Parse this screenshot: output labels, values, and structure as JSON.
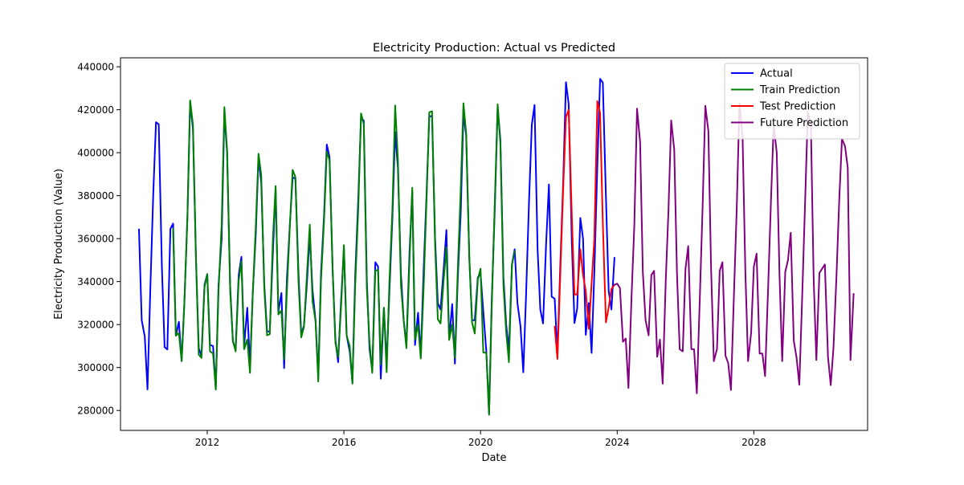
{
  "chart_data": {
    "type": "line",
    "title": "Electricity Production: Actual vs Predicted",
    "xlabel": "Date",
    "ylabel": "Electricity Production (Value)",
    "xlim": [
      2009.46,
      2031.33
    ],
    "ylim": [
      270730,
      444160
    ],
    "x_ticks": [
      2012,
      2016,
      2020,
      2024,
      2028
    ],
    "x_tick_labels": [
      "2012",
      "2016",
      "2020",
      "2024",
      "2028"
    ],
    "y_ticks": [
      280000,
      300000,
      320000,
      340000,
      360000,
      380000,
      400000,
      420000,
      440000
    ],
    "y_tick_labels": [
      "280000",
      "300000",
      "320000",
      "340000",
      "360000",
      "380000",
      "400000",
      "420000",
      "440000"
    ],
    "legend_position": "top-right",
    "grid": false,
    "series": [
      {
        "name": "Actual",
        "color": "#0000ff",
        "x": [
          2010.0,
          2010.08,
          2010.17,
          2010.25,
          2010.33,
          2010.42,
          2010.5,
          2010.58,
          2010.67,
          2010.75,
          2010.83,
          2010.92,
          2011.0,
          2011.08,
          2011.17,
          2011.25,
          2011.33,
          2011.42,
          2011.5,
          2011.58,
          2011.67,
          2011.75,
          2011.83,
          2011.92,
          2012.0,
          2012.08,
          2012.17,
          2012.25,
          2012.33,
          2012.42,
          2012.5,
          2012.58,
          2012.67,
          2012.75,
          2012.83,
          2012.92,
          2013.0,
          2013.08,
          2013.17,
          2013.25,
          2013.33,
          2013.42,
          2013.5,
          2013.58,
          2013.67,
          2013.75,
          2013.83,
          2013.92,
          2014.0,
          2014.08,
          2014.17,
          2014.25,
          2014.33,
          2014.42,
          2014.5,
          2014.58,
          2014.67,
          2014.75,
          2014.83,
          2014.92,
          2015.0,
          2015.08,
          2015.17,
          2015.25,
          2015.33,
          2015.42,
          2015.5,
          2015.58,
          2015.67,
          2015.75,
          2015.83,
          2015.92,
          2016.0,
          2016.08,
          2016.17,
          2016.25,
          2016.33,
          2016.42,
          2016.5,
          2016.58,
          2016.67,
          2016.75,
          2016.83,
          2016.92,
          2017.0,
          2017.08,
          2017.17,
          2017.25,
          2017.33,
          2017.42,
          2017.5,
          2017.58,
          2017.67,
          2017.75,
          2017.83,
          2017.92,
          2018.0,
          2018.08,
          2018.17,
          2018.25,
          2018.33,
          2018.42,
          2018.5,
          2018.58,
          2018.67,
          2018.75,
          2018.83,
          2018.92,
          2019.0,
          2019.08,
          2019.17,
          2019.25,
          2019.33,
          2019.42,
          2019.5,
          2019.58,
          2019.67,
          2019.75,
          2019.83,
          2019.92,
          2020.0,
          2020.08,
          2020.17,
          2020.25,
          2020.33,
          2020.42,
          2020.5,
          2020.58,
          2020.67,
          2020.75,
          2020.83,
          2020.92,
          2021.0,
          2021.08,
          2021.17,
          2021.25,
          2021.33,
          2021.42,
          2021.5,
          2021.58,
          2021.67,
          2021.75,
          2021.83,
          2021.92,
          2022.0,
          2022.08,
          2022.17,
          2022.25,
          2022.33,
          2022.42,
          2022.5,
          2022.58,
          2022.67,
          2022.75,
          2022.83,
          2022.92,
          2023.0,
          2023.08,
          2023.17,
          2023.25,
          2023.33,
          2023.42,
          2023.5,
          2023.58,
          2023.67,
          2023.75,
          2023.83,
          2023.92
        ],
        "y": [
          364200,
          322000,
          314500,
          289800,
          335000,
          381000,
          414200,
          413200,
          347000,
          309500,
          308400,
          364500,
          367000,
          314800,
          321300,
          303000,
          330000,
          370000,
          423500,
          411000,
          350000,
          309000,
          305500,
          338500,
          343500,
          310500,
          310000,
          290300,
          338000,
          360000,
          418000,
          400000,
          338000,
          312000,
          308500,
          343000,
          351500,
          310200,
          327800,
          300200,
          334200,
          362000,
          398000,
          386000,
          338500,
          317000,
          316500,
          353500,
          383200,
          325800,
          334700,
          299700,
          341000,
          367000,
          388500,
          388000,
          343500,
          315500,
          319500,
          340000,
          362000,
          336000,
          322000,
          296000,
          344000,
          371000,
          403800,
          398000,
          345000,
          313000,
          302500,
          332000,
          355500,
          315000,
          307500,
          293000,
          342000,
          379000,
          416000,
          415000,
          341000,
          308500,
          298500,
          349000,
          347000,
          294800,
          327800,
          301800,
          335000,
          370000,
          409500,
          393000,
          343500,
          322000,
          310500,
          354000,
          381800,
          310500,
          325500,
          305500,
          344000,
          381000,
          417000,
          417000,
          360000,
          330000,
          327000,
          346000,
          364000,
          313000,
          329500,
          301800,
          340000,
          372000,
          418000,
          408000,
          351000,
          322000,
          322000,
          342000,
          343500,
          326200,
          307400,
          278500,
          332000,
          376000,
          421000,
          406000,
          342000,
          320000,
          308000,
          348000,
          355000,
          330000,
          319000,
          297800,
          333000,
          378000,
          413000,
          422200,
          355000,
          327000,
          320500,
          357500,
          385200,
          333000,
          332000,
          306000,
          346000,
          387000,
          432800,
          422600,
          360000,
          320700,
          327500,
          369600,
          360000,
          315200,
          330000,
          306800,
          343800,
          394000,
          434400,
          432600,
          379000,
          335600,
          327000,
          351000
        ]
      },
      {
        "name": "Train Prediction",
        "color": "#008000",
        "x": [
          2011.0,
          2011.08,
          2011.17,
          2011.25,
          2011.33,
          2011.42,
          2011.5,
          2011.58,
          2011.67,
          2011.75,
          2011.83,
          2011.92,
          2012.0,
          2012.08,
          2012.17,
          2012.25,
          2012.33,
          2012.42,
          2012.5,
          2012.58,
          2012.67,
          2012.75,
          2012.83,
          2012.92,
          2013.0,
          2013.08,
          2013.17,
          2013.25,
          2013.33,
          2013.42,
          2013.5,
          2013.58,
          2013.67,
          2013.75,
          2013.83,
          2013.92,
          2014.0,
          2014.08,
          2014.17,
          2014.25,
          2014.33,
          2014.42,
          2014.5,
          2014.58,
          2014.67,
          2014.75,
          2014.83,
          2014.92,
          2015.0,
          2015.08,
          2015.17,
          2015.25,
          2015.33,
          2015.42,
          2015.5,
          2015.58,
          2015.67,
          2015.75,
          2015.83,
          2015.92,
          2016.0,
          2016.08,
          2016.17,
          2016.25,
          2016.33,
          2016.42,
          2016.5,
          2016.58,
          2016.67,
          2016.75,
          2016.83,
          2016.92,
          2017.0,
          2017.08,
          2017.17,
          2017.25,
          2017.33,
          2017.42,
          2017.5,
          2017.58,
          2017.67,
          2017.75,
          2017.83,
          2017.92,
          2018.0,
          2018.08,
          2018.17,
          2018.25,
          2018.33,
          2018.42,
          2018.5,
          2018.58,
          2018.67,
          2018.75,
          2018.83,
          2018.92,
          2019.0,
          2019.08,
          2019.17,
          2019.25,
          2019.33,
          2019.42,
          2019.5,
          2019.58,
          2019.67,
          2019.75,
          2019.83,
          2019.92,
          2020.0,
          2020.08,
          2020.17,
          2020.25,
          2020.33,
          2020.42,
          2020.5,
          2020.58,
          2020.67,
          2020.75,
          2020.83,
          2020.92,
          2021.0
        ],
        "y": [
          364500,
          314800,
          316000,
          303000,
          330000,
          370000,
          424300,
          413000,
          350000,
          306000,
          304500,
          337500,
          343500,
          307500,
          306500,
          289700,
          335500,
          366500,
          421200,
          401000,
          336000,
          312500,
          307500,
          340500,
          349500,
          308500,
          313000,
          297500,
          334000,
          366000,
          399500,
          389500,
          336500,
          315000,
          315500,
          360000,
          384500,
          324700,
          326500,
          303700,
          335500,
          366500,
          392000,
          388700,
          339500,
          314000,
          319000,
          344000,
          366500,
          331000,
          321500,
          293500,
          340500,
          368500,
          400500,
          396500,
          345500,
          311500,
          305000,
          329000,
          357000,
          315000,
          310000,
          292500,
          337500,
          374000,
          418300,
          413500,
          337000,
          311500,
          297500,
          345000,
          345500,
          301500,
          327800,
          297800,
          339500,
          374000,
          422000,
          397000,
          338500,
          322000,
          309000,
          350000,
          383700,
          313000,
          320000,
          304200,
          335500,
          378500,
          418800,
          419300,
          357000,
          322500,
          320500,
          341000,
          356000,
          312800,
          320000,
          304500,
          344000,
          383000,
          423000,
          409000,
          351000,
          321000,
          315800,
          341000,
          346000,
          307000,
          306800,
          278000,
          329500,
          379000,
          422500,
          404000,
          338000,
          316500,
          302500,
          348000,
          354000
        ]
      },
      {
        "name": "Test Prediction",
        "color": "#ff0000",
        "x": [
          2022.17,
          2022.25,
          2022.33,
          2022.42,
          2022.5,
          2022.58,
          2022.67,
          2022.75,
          2022.83,
          2022.92,
          2023.0,
          2023.08,
          2023.17,
          2023.25,
          2023.33,
          2023.42,
          2023.5,
          2023.58,
          2023.67,
          2023.75,
          2023.83,
          2023.92
        ],
        "y": [
          319000,
          304000,
          341500,
          383500,
          416500,
          420000,
          372000,
          334000,
          334000,
          355000,
          343000,
          335500,
          318000,
          339000,
          359500,
          424000,
          418500,
          367000,
          321000,
          328000,
          336500,
          338500
        ]
      },
      {
        "name": "Future Prediction",
        "color": "#800080",
        "x": [
          2023.92,
          2024.0,
          2024.08,
          2024.17,
          2024.25,
          2024.33,
          2024.42,
          2024.5,
          2024.58,
          2024.67,
          2024.75,
          2024.83,
          2024.92,
          2025.0,
          2025.08,
          2025.17,
          2025.25,
          2025.33,
          2025.42,
          2025.5,
          2025.58,
          2025.67,
          2025.75,
          2025.83,
          2025.92,
          2026.0,
          2026.08,
          2026.17,
          2026.25,
          2026.33,
          2026.42,
          2026.5,
          2026.58,
          2026.67,
          2026.75,
          2026.83,
          2026.92,
          2027.0,
          2027.08,
          2027.17,
          2027.25,
          2027.33,
          2027.42,
          2027.5,
          2027.58,
          2027.67,
          2027.75,
          2027.83,
          2027.92,
          2028.0,
          2028.08,
          2028.17,
          2028.25,
          2028.33,
          2028.42,
          2028.5,
          2028.58,
          2028.67,
          2028.75,
          2028.83,
          2028.92,
          2029.0,
          2029.08,
          2029.17,
          2029.25,
          2029.33,
          2029.42,
          2029.5,
          2029.58,
          2029.67,
          2029.75,
          2029.83,
          2029.92,
          2030.0,
          2030.08,
          2030.17,
          2030.25,
          2030.33,
          2030.42,
          2030.5,
          2030.58,
          2030.67,
          2030.75,
          2030.83,
          2030.92
        ],
        "y": [
          338500,
          339000,
          337000,
          312000,
          313500,
          290500,
          333500,
          366000,
          420500,
          405000,
          344500,
          322000,
          315000,
          343000,
          345000,
          305000,
          313000,
          292500,
          340000,
          373000,
          415000,
          401500,
          344000,
          308500,
          307500,
          346000,
          356500,
          308500,
          308500,
          288000,
          333000,
          374500,
          421800,
          410000,
          345500,
          303000,
          308500,
          345000,
          349000,
          305500,
          302000,
          289500,
          335000,
          374000,
          423000,
          407000,
          345000,
          303000,
          316000,
          347000,
          353000,
          306500,
          306500,
          296000,
          338500,
          377500,
          413000,
          400000,
          343500,
          303000,
          344500,
          350000,
          362700,
          312500,
          304500,
          292000,
          335500,
          377000,
          419000,
          413000,
          342000,
          303500,
          344000,
          346000,
          348000,
          305000,
          291800,
          309000,
          343000,
          378000,
          406500,
          403000,
          393000,
          303500,
          334200
        ]
      }
    ]
  }
}
